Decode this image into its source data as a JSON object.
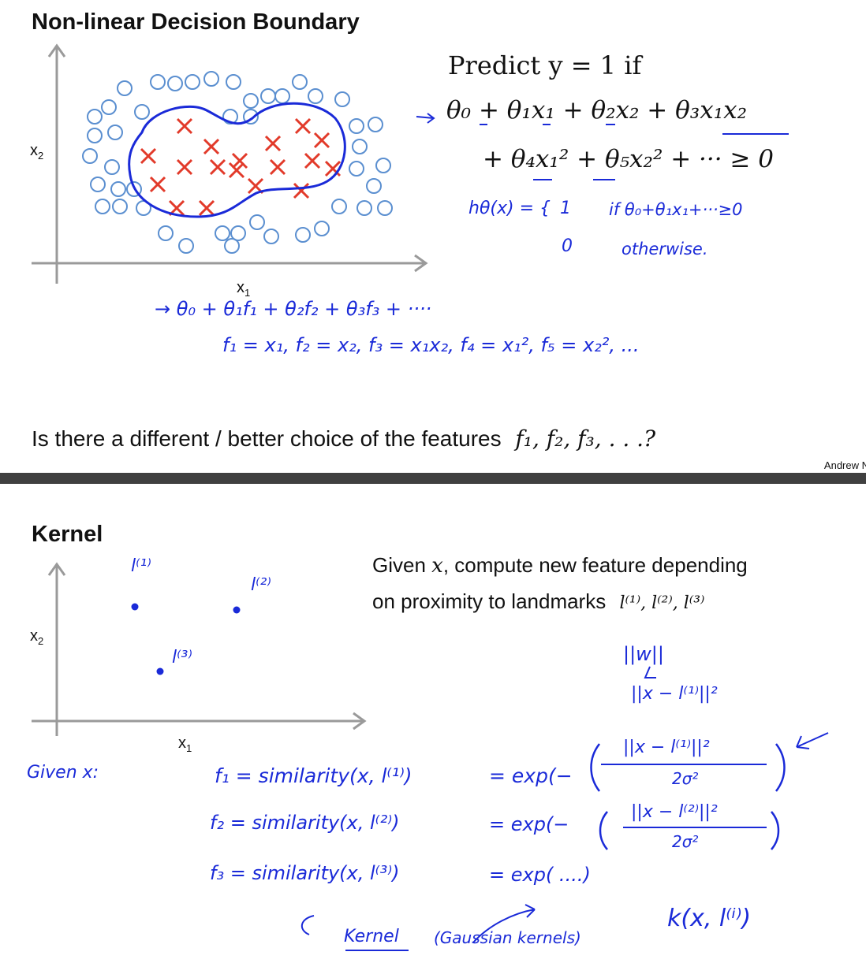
{
  "slide1": {
    "title": "Non-linear Decision Boundary",
    "axis_x_label": "x",
    "axis_x_sub": "1",
    "axis_y_label": "x",
    "axis_y_sub": "2",
    "predict_line": "Predict y = 1 if",
    "eq_line1": "θ₀ + θ₁x₁ + θ₂x₂ + θ₃x₁x₂",
    "eq_line2": "+ θ₄x₁² + θ₅x₂² + ··· ≥ 0",
    "hand_h_def": "hθ(x) = {",
    "hand_case1_val": "1",
    "hand_case1_cond": "if  θ₀+θ₁x₁+···≥0",
    "hand_case2_val": "0",
    "hand_case2_cond": "otherwise.",
    "hand_poly": "→ θ₀ + θ₁f₁ + θ₂f₂ + θ₃f₃ + ····",
    "hand_features": "f₁ = x₁,   f₂ = x₂,   f₃ = x₁x₂,   f₄ = x₁²,   f₅ = x₂², ...",
    "question_text": "Is there a different / better choice of the features",
    "question_math": "f₁, f₂, f₃, . . .?",
    "author": "Andrew N"
  },
  "slide2": {
    "title": "Kernel",
    "axis_x_label": "x",
    "axis_x_sub": "1",
    "axis_y_label": "x",
    "axis_y_sub": "2",
    "landmark1": "l⁽¹⁾",
    "landmark2": "l⁽²⁾",
    "landmark3": "l⁽³⁾",
    "given_text_a": "Given",
    "given_text_b": ", compute new feature depending",
    "given_x": "x",
    "proximity_text": "on proximity to landmarks",
    "landmarks_math": "l⁽¹⁾, l⁽²⁾, l⁽³⁾",
    "hand_norm_w": "||w||",
    "hand_norm_top": "||x − l⁽¹⁾||²",
    "hand_given": "Given x:",
    "hand_f1": "f₁ = similarity(x, l⁽¹⁾)",
    "hand_exp1": "= exp(−",
    "hand_exp1_num": "||x − l⁽¹⁾||²",
    "hand_exp1_den": "2σ²",
    "hand_f2": "f₂ = similarity(x, l⁽²⁾)",
    "hand_exp2": "= exp(−",
    "hand_exp2_num": "||x − l⁽²⁾||²",
    "hand_exp2_den": "2σ²",
    "hand_f3": "f₃ = similarity(x, l⁽³⁾)",
    "hand_exp3": "= exp( ....)",
    "hand_kernel": "Kernel",
    "hand_gaussian": "(Gaussian kernels)",
    "hand_k": "k(x, l⁽ⁱ⁾)"
  },
  "colors": {
    "circle": "#5b8fd0",
    "cross": "#e23a2a",
    "boundary": "#1a2ad8",
    "ink": "#1a2ad8",
    "divider": "#404040"
  }
}
